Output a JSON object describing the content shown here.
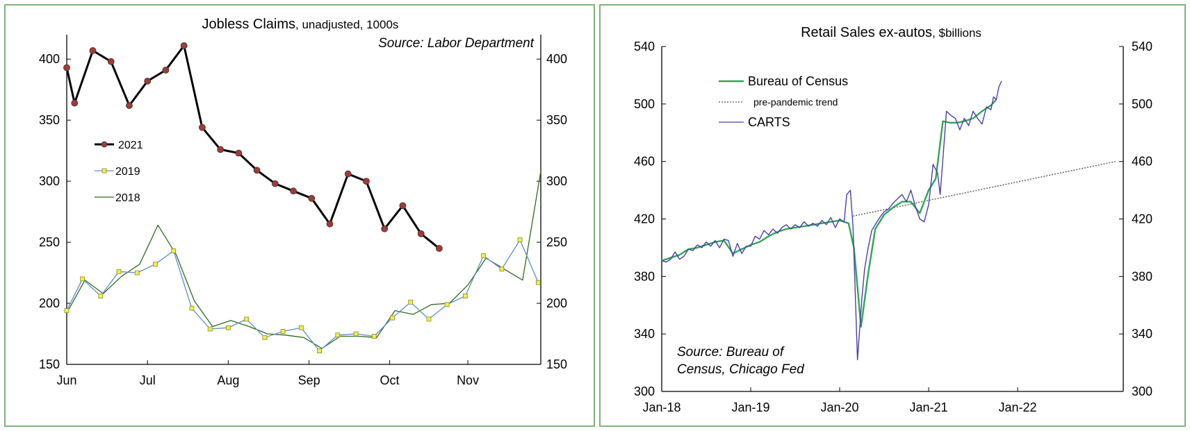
{
  "chart_data": [
    {
      "type": "line",
      "title": "Jobless Claims",
      "subtitle": ", unadjusted, 1000s",
      "source": "Source: Labor Department",
      "xlabel": "",
      "ylabel": "",
      "ylim": [
        150,
        420
      ],
      "y_ticks": [
        150,
        200,
        250,
        300,
        350,
        400
      ],
      "x_ticks": [
        "Jun",
        "Jul",
        "Aug",
        "Sep",
        "Oct",
        "Nov"
      ],
      "x_tick_weeks": [
        0,
        4.43,
        8.86,
        13.29,
        17.71,
        22
      ],
      "grid": false,
      "legend_position": "left-middle",
      "series": [
        {
          "name": "2021",
          "color": "#000000",
          "marker_color": "#a23b34",
          "x_weeks": [
            0,
            0.43,
            1.43,
            2.43,
            3.43,
            4.43,
            5.43,
            6.43,
            7.43,
            8.43,
            9.43,
            10.43,
            11.43,
            12.43,
            13.43,
            14.43,
            15.43,
            16.43,
            17.43,
            18.43,
            19.43,
            20.43
          ],
          "values": [
            393,
            364,
            407,
            398,
            362,
            382,
            391,
            411,
            344,
            326,
            323,
            309,
            298,
            292,
            286,
            265,
            306,
            300,
            261,
            280,
            257,
            245
          ]
        },
        {
          "name": "2019",
          "color": "#5b8fc9",
          "marker_color": "#f2ee4a",
          "x_weeks": [
            0,
            0.86,
            1.86,
            2.86,
            3.86,
            4.86,
            5.86,
            6.86,
            7.86,
            8.86,
            9.86,
            10.86,
            11.86,
            12.86,
            13.86,
            14.86,
            15.86,
            16.86,
            17.86,
            18.86,
            19.86,
            20.86,
            21.86,
            22.86,
            23.86,
            24.86,
            25.86
          ],
          "values": [
            194,
            220,
            206,
            226,
            225,
            232,
            243,
            196,
            179,
            180,
            187,
            172,
            177,
            180,
            161,
            174,
            175,
            173,
            188,
            201,
            187,
            199,
            206,
            239,
            228,
            252,
            217
          ]
        },
        {
          "name": "2018",
          "color": "#2e6b1f",
          "x_weeks": [
            0,
            1,
            2,
            3,
            4,
            5,
            6,
            7,
            8,
            9,
            10,
            11,
            12,
            13,
            14,
            15,
            16,
            17,
            18,
            19,
            20,
            21,
            22,
            23,
            24,
            25,
            26
          ],
          "values": [
            192,
            219,
            208,
            222,
            232,
            264,
            240,
            202,
            181,
            186,
            181,
            175,
            174,
            172,
            163,
            173,
            173,
            172,
            194,
            191,
            199,
            200,
            215,
            237,
            228,
            219,
            308
          ]
        }
      ]
    },
    {
      "type": "line",
      "title": "Retail Sales ex-autos",
      "subtitle": ", $billions",
      "source_line1": "Source: Bureau of",
      "source_line2": "Census, Chicago Fed",
      "xlabel": "",
      "ylabel": "",
      "ylim": [
        300,
        540
      ],
      "y_ticks": [
        300,
        340,
        380,
        420,
        460,
        500,
        540
      ],
      "x_ticks": [
        "Jan-18",
        "Jan-19",
        "Jan-20",
        "Jan-21",
        "Jan-22"
      ],
      "x_tick_years": [
        2018,
        2019,
        2020,
        2021,
        2022
      ],
      "xlim_years": [
        2018,
        2023.1
      ],
      "grid": false,
      "legend_position": "top-left",
      "series": [
        {
          "name": "Bureau of Census",
          "color": "#2ea654",
          "x_years": [
            2018.0,
            2018.1,
            2018.2,
            2018.3,
            2018.4,
            2018.5,
            2018.6,
            2018.7,
            2018.8,
            2018.9,
            2019.0,
            2019.1,
            2019.2,
            2019.3,
            2019.4,
            2019.5,
            2019.6,
            2019.7,
            2019.8,
            2019.9,
            2020.0,
            2020.1,
            2020.16,
            2020.24,
            2020.32,
            2020.4,
            2020.5,
            2020.6,
            2020.7,
            2020.8,
            2020.9,
            2021.0,
            2021.08,
            2021.16,
            2021.24,
            2021.32,
            2021.4,
            2021.5,
            2021.6,
            2021.7,
            2021.76
          ],
          "values": [
            391,
            393,
            395,
            399,
            400,
            402,
            404,
            405,
            396,
            399,
            402,
            404,
            408,
            411,
            413,
            414,
            415,
            416,
            417,
            418,
            419,
            417,
            400,
            345,
            382,
            413,
            423,
            428,
            432,
            432,
            424,
            440,
            448,
            488,
            487,
            487,
            488,
            490,
            495,
            499,
            503
          ]
        },
        {
          "name": "pre-pandemic trend",
          "color": "#555555",
          "x_years": [
            2020.15,
            2023.1
          ],
          "values": [
            422,
            460
          ]
        },
        {
          "name": "CARTS",
          "color": "#4a3fa8",
          "x_years": [
            2018.0,
            2018.05,
            2018.1,
            2018.15,
            2018.2,
            2018.25,
            2018.3,
            2018.35,
            2018.4,
            2018.45,
            2018.5,
            2018.55,
            2018.6,
            2018.65,
            2018.7,
            2018.75,
            2018.8,
            2018.85,
            2018.9,
            2018.95,
            2019.0,
            2019.05,
            2019.1,
            2019.15,
            2019.2,
            2019.25,
            2019.3,
            2019.35,
            2019.4,
            2019.45,
            2019.5,
            2019.55,
            2019.6,
            2019.65,
            2019.7,
            2019.75,
            2019.8,
            2019.85,
            2019.9,
            2019.95,
            2020.0,
            2020.05,
            2020.08,
            2020.12,
            2020.15,
            2020.2,
            2020.25,
            2020.28,
            2020.32,
            2020.36,
            2020.4,
            2020.45,
            2020.5,
            2020.55,
            2020.6,
            2020.65,
            2020.7,
            2020.75,
            2020.8,
            2020.85,
            2020.9,
            2020.95,
            2021.0,
            2021.05,
            2021.1,
            2021.13,
            2021.17,
            2021.2,
            2021.25,
            2021.3,
            2021.35,
            2021.4,
            2021.45,
            2021.5,
            2021.55,
            2021.6,
            2021.65,
            2021.7,
            2021.73,
            2021.76,
            2021.79,
            2021.82
          ],
          "values": [
            391,
            390,
            392,
            397,
            392,
            394,
            399,
            398,
            402,
            400,
            404,
            401,
            405,
            400,
            406,
            405,
            394,
            403,
            396,
            401,
            401,
            408,
            406,
            412,
            409,
            413,
            410,
            414,
            416,
            413,
            416,
            414,
            418,
            415,
            417,
            415,
            419,
            416,
            421,
            414,
            420,
            418,
            437,
            440,
            415,
            322,
            365,
            385,
            400,
            412,
            416,
            421,
            425,
            427,
            431,
            434,
            437,
            432,
            440,
            429,
            420,
            418,
            430,
            458,
            452,
            437,
            470,
            495,
            492,
            490,
            482,
            490,
            485,
            495,
            490,
            486,
            498,
            496,
            505,
            503,
            512,
            516
          ]
        }
      ]
    }
  ]
}
